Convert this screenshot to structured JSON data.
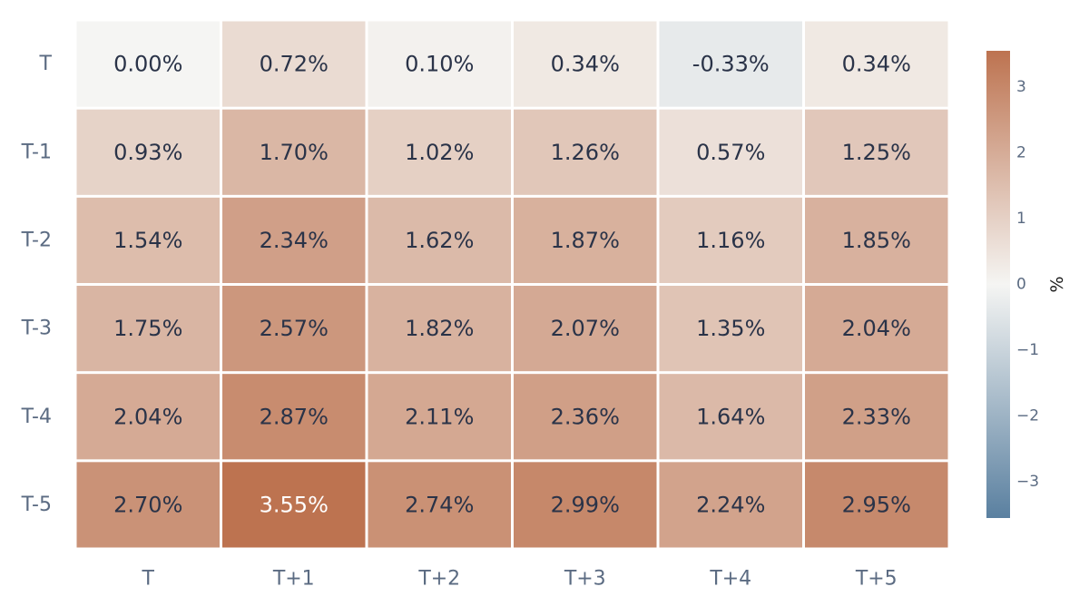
{
  "chart_data": {
    "type": "heatmap",
    "title": "",
    "xlabel": "",
    "ylabel": "",
    "x_categories": [
      "T",
      "T+1",
      "T+2",
      "T+3",
      "T+4",
      "T+5"
    ],
    "y_categories": [
      "T",
      "T-1",
      "T-2",
      "T-3",
      "T-4",
      "T-5"
    ],
    "values": [
      [
        0.0,
        0.72,
        0.1,
        0.34,
        -0.33,
        0.34
      ],
      [
        0.93,
        1.7,
        1.02,
        1.26,
        0.57,
        1.25
      ],
      [
        1.54,
        2.34,
        1.62,
        1.87,
        1.16,
        1.85
      ],
      [
        1.75,
        2.57,
        1.82,
        2.07,
        1.35,
        2.04
      ],
      [
        2.04,
        2.87,
        2.11,
        2.36,
        1.64,
        2.33
      ],
      [
        2.7,
        3.55,
        2.74,
        2.99,
        2.24,
        2.95
      ]
    ],
    "cell_labels": [
      [
        "0.00%",
        "0.72%",
        "0.10%",
        "0.34%",
        "-0.33%",
        "0.34%"
      ],
      [
        "0.93%",
        "1.70%",
        "1.02%",
        "1.26%",
        "0.57%",
        "1.25%"
      ],
      [
        "1.54%",
        "2.34%",
        "1.62%",
        "1.87%",
        "1.16%",
        "1.85%"
      ],
      [
        "1.75%",
        "2.57%",
        "1.82%",
        "2.07%",
        "1.35%",
        "2.04%"
      ],
      [
        "2.04%",
        "2.87%",
        "2.11%",
        "2.36%",
        "1.64%",
        "2.33%"
      ],
      [
        "2.70%",
        "3.55%",
        "2.74%",
        "2.99%",
        "2.24%",
        "2.95%"
      ]
    ],
    "colorbar": {
      "title": "%",
      "range": [
        -3.55,
        3.55
      ],
      "ticks": [
        3,
        2,
        1,
        0,
        -1,
        -2,
        -3
      ],
      "tick_labels": [
        "3",
        "2",
        "1",
        "0",
        "−1",
        "−2",
        "−3"
      ]
    },
    "colorscale": {
      "low": "#5a80a0",
      "mid": "#f5f5f3",
      "high": "#bd7350"
    },
    "text_colors": {
      "dark": "#2a3348",
      "light": "#ffffff"
    },
    "grid": false,
    "legend": "right"
  }
}
